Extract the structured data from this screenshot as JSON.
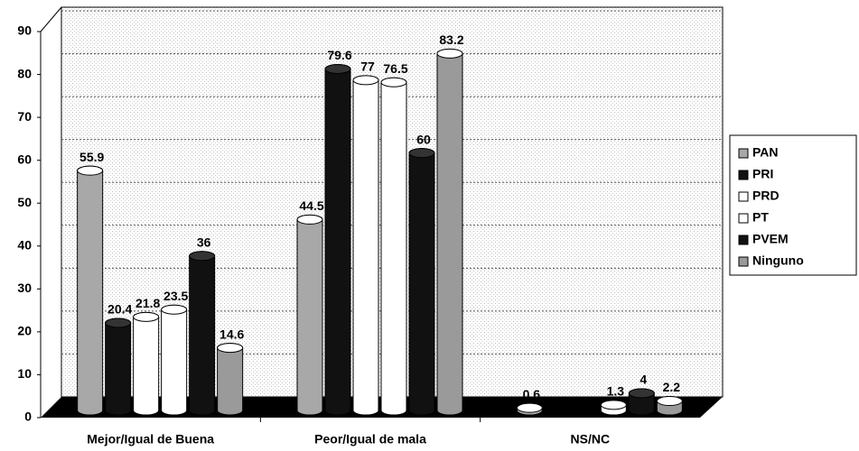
{
  "chart_data": {
    "type": "bar",
    "categories": [
      "Mejor/Igual de Buena",
      "Peor/Igual de mala",
      "NS/NC"
    ],
    "series": [
      {
        "name": "PAN",
        "color": "#a8a8a8",
        "values": [
          55.9,
          44.5,
          0.6
        ]
      },
      {
        "name": "PRI",
        "color": "#111111",
        "values": [
          20.4,
          79.6,
          null
        ]
      },
      {
        "name": "PRD",
        "color": "#ffffff",
        "values": [
          21.8,
          77,
          null
        ]
      },
      {
        "name": "PT",
        "color": "#ffffff",
        "values": [
          23.5,
          76.5,
          1.3
        ]
      },
      {
        "name": "PVEM",
        "color": "#111111",
        "values": [
          36,
          60,
          4
        ]
      },
      {
        "name": "Ninguno",
        "color": "#9a9a9a",
        "values": [
          14.6,
          83.2,
          2.2
        ]
      }
    ],
    "ylim": [
      0,
      90
    ],
    "yticks": [
      0,
      10,
      20,
      30,
      40,
      50,
      60,
      70,
      80,
      90
    ],
    "grid": true,
    "legend": "right"
  }
}
